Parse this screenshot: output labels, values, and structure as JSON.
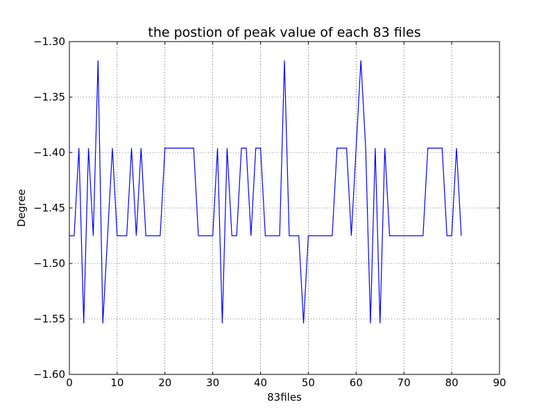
{
  "chart_data": {
    "type": "line",
    "title": "the postion of peak value of each 83 files",
    "xlabel": "83files",
    "ylabel": "Degree",
    "xlim": [
      0,
      90
    ],
    "ylim": [
      -1.6,
      -1.3
    ],
    "xticks": [
      0,
      10,
      20,
      30,
      40,
      50,
      60,
      70,
      80,
      90
    ],
    "yticks": [
      -1.6,
      -1.55,
      -1.5,
      -1.45,
      -1.4,
      -1.35,
      -1.3
    ],
    "xtick_labels": [
      "0",
      "10",
      "20",
      "30",
      "40",
      "50",
      "60",
      "70",
      "80",
      "90"
    ],
    "ytick_labels": [
      "−1.60",
      "−1.55",
      "−1.50",
      "−1.45",
      "−1.40",
      "−1.35",
      "−1.30"
    ],
    "grid": true,
    "series": [
      {
        "color": "#0000ff",
        "x": [
          0,
          1,
          2,
          3,
          4,
          5,
          6,
          7,
          8,
          9,
          10,
          11,
          12,
          13,
          14,
          15,
          16,
          17,
          18,
          19,
          20,
          21,
          22,
          23,
          24,
          25,
          26,
          27,
          28,
          29,
          30,
          31,
          32,
          33,
          34,
          35,
          36,
          37,
          38,
          39,
          40,
          41,
          42,
          43,
          44,
          45,
          46,
          47,
          48,
          49,
          50,
          51,
          52,
          53,
          54,
          55,
          56,
          57,
          58,
          59,
          60,
          61,
          62,
          63,
          64,
          65,
          66,
          67,
          68,
          69,
          70,
          71,
          72,
          73,
          74,
          75,
          76,
          77,
          78,
          79,
          80,
          81,
          82
        ],
        "values": [
          -1.475,
          -1.475,
          -1.396,
          -1.554,
          -1.396,
          -1.475,
          -1.317,
          -1.554,
          -1.475,
          -1.396,
          -1.475,
          -1.475,
          -1.475,
          -1.396,
          -1.475,
          -1.396,
          -1.475,
          -1.475,
          -1.475,
          -1.475,
          -1.396,
          -1.396,
          -1.396,
          -1.396,
          -1.396,
          -1.396,
          -1.396,
          -1.475,
          -1.475,
          -1.475,
          -1.475,
          -1.396,
          -1.554,
          -1.396,
          -1.475,
          -1.475,
          -1.396,
          -1.396,
          -1.475,
          -1.396,
          -1.396,
          -1.475,
          -1.475,
          -1.475,
          -1.475,
          -1.317,
          -1.475,
          -1.475,
          -1.475,
          -1.554,
          -1.475,
          -1.475,
          -1.475,
          -1.475,
          -1.475,
          -1.475,
          -1.396,
          -1.396,
          -1.396,
          -1.475,
          -1.396,
          -1.317,
          -1.396,
          -1.554,
          -1.396,
          -1.554,
          -1.396,
          -1.475,
          -1.475,
          -1.475,
          -1.475,
          -1.475,
          -1.475,
          -1.475,
          -1.475,
          -1.396,
          -1.396,
          -1.396,
          -1.396,
          -1.475,
          -1.475,
          -1.396,
          -1.475
        ]
      }
    ]
  }
}
